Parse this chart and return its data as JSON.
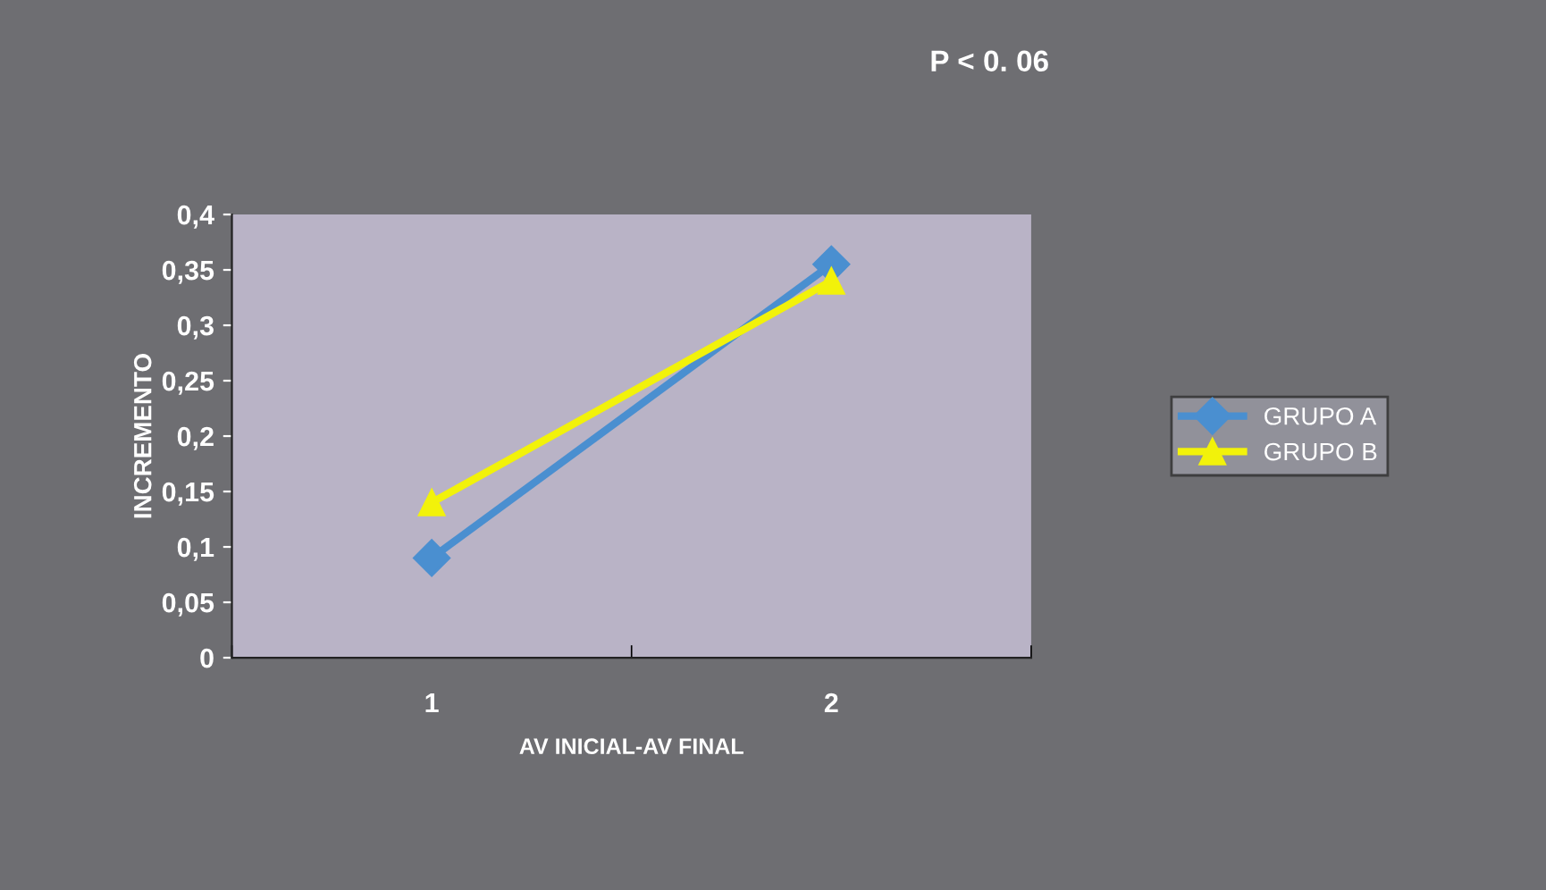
{
  "chart_data": {
    "type": "line",
    "title": "P < 0. 06",
    "xlabel": "AV INICIAL-AV FINAL",
    "ylabel": "INCREMENTO",
    "categories": [
      "1",
      "2"
    ],
    "series": [
      {
        "name": "GRUPO A",
        "color": "#4a8fd0",
        "marker": "diamond",
        "values": [
          0.09,
          0.355
        ]
      },
      {
        "name": "GRUPO B",
        "color": "#f2f20a",
        "marker": "triangle",
        "values": [
          0.14,
          0.34
        ]
      }
    ],
    "ylim": [
      0,
      0.4
    ],
    "yticks": [
      0,
      {
        "value": 0.05,
        "label": "0,05"
      },
      {
        "value": 0.1,
        "label": "0,1"
      },
      {
        "value": 0.15,
        "label": "0,15"
      },
      {
        "value": 0.2,
        "label": "0,2"
      },
      {
        "value": 0.25,
        "label": "0,25"
      },
      {
        "value": 0.3,
        "label": "0,3"
      },
      {
        "value": 0.35,
        "label": "0,35"
      },
      {
        "value": 0.4,
        "label": "0,4"
      }
    ],
    "grid": false,
    "legend": "right",
    "line_style": "solid"
  }
}
